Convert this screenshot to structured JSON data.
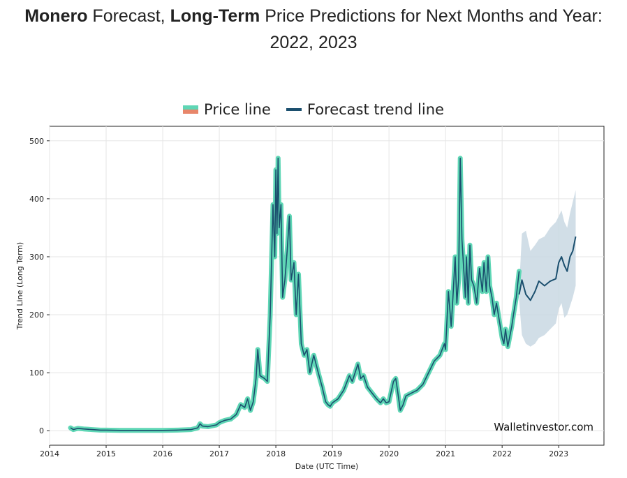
{
  "title": {
    "part1_bold": "Monero",
    "part2": " Forecast, ",
    "part3_bold": "Long-Term",
    "part4": " Price Predictions for Next Months and Year:",
    "line2": "2022, 2023"
  },
  "legend": {
    "price_label": "Price line",
    "forecast_label": "Forecast trend line"
  },
  "watermark": "Walletinvestor.com",
  "colors": {
    "price_line": "#5fd6b5",
    "price_line_alt": "#e8866a",
    "forecast_line": "#1b4f6e",
    "forecast_band": "#c9d8e3",
    "grid": "#e5e5e5"
  },
  "chart_data": {
    "type": "line",
    "xlabel": "Date (UTC Time)",
    "ylabel": "Trend Line (Long Term)",
    "xlim": [
      2014.0,
      2023.8
    ],
    "ylim": [
      -25,
      525
    ],
    "x_ticks": [
      "2014",
      "2015",
      "2016",
      "2017",
      "2018",
      "2019",
      "2020",
      "2021",
      "2022",
      "2023"
    ],
    "y_ticks": [
      "0",
      "100",
      "200",
      "300",
      "400",
      "500"
    ],
    "grid": true,
    "legend_position": "top-center",
    "series": [
      {
        "name": "Price line",
        "x": [
          2014.37,
          2014.42,
          2014.5,
          2014.6,
          2014.75,
          2014.9,
          2015.0,
          2015.25,
          2015.5,
          2015.75,
          2016.0,
          2016.25,
          2016.5,
          2016.62,
          2016.66,
          2016.7,
          2016.8,
          2016.95,
          2017.0,
          2017.1,
          2017.2,
          2017.3,
          2017.38,
          2017.45,
          2017.5,
          2017.55,
          2017.6,
          2017.65,
          2017.68,
          2017.72,
          2017.8,
          2017.85,
          2017.9,
          2017.95,
          2017.98,
          2018.0,
          2018.02,
          2018.04,
          2018.06,
          2018.09,
          2018.12,
          2018.16,
          2018.2,
          2018.24,
          2018.27,
          2018.32,
          2018.36,
          2018.4,
          2018.45,
          2018.5,
          2018.55,
          2018.6,
          2018.67,
          2018.75,
          2018.82,
          2018.88,
          2018.92,
          2018.96,
          2019.0,
          2019.1,
          2019.2,
          2019.3,
          2019.35,
          2019.45,
          2019.5,
          2019.55,
          2019.62,
          2019.7,
          2019.78,
          2019.85,
          2019.9,
          2019.95,
          2020.0,
          2020.08,
          2020.12,
          2020.15,
          2020.2,
          2020.25,
          2020.3,
          2020.4,
          2020.5,
          2020.6,
          2020.7,
          2020.8,
          2020.9,
          2020.98,
          2021.0,
          2021.05,
          2021.1,
          2021.13,
          2021.17,
          2021.2,
          2021.23,
          2021.26,
          2021.29,
          2021.32,
          2021.35,
          2021.37,
          2021.4,
          2021.43,
          2021.46,
          2021.5,
          2021.55,
          2021.6,
          2021.65,
          2021.68,
          2021.72,
          2021.75,
          2021.78,
          2021.82,
          2021.86,
          2021.9,
          2021.95,
          2022.0,
          2022.03,
          2022.06,
          2022.1,
          2022.13,
          2022.17,
          2022.2,
          2022.25,
          2022.3
        ],
        "y": [
          5,
          2,
          4,
          3,
          2,
          1,
          1,
          0.5,
          0.5,
          0.5,
          0.5,
          1,
          2,
          5,
          12,
          8,
          7,
          10,
          14,
          18,
          20,
          28,
          45,
          40,
          55,
          35,
          50,
          90,
          140,
          95,
          90,
          85,
          200,
          390,
          300,
          450,
          340,
          470,
          350,
          390,
          230,
          260,
          310,
          370,
          260,
          290,
          200,
          270,
          150,
          130,
          140,
          100,
          130,
          100,
          75,
          50,
          45,
          42,
          48,
          55,
          70,
          95,
          85,
          115,
          90,
          95,
          75,
          65,
          55,
          48,
          55,
          48,
          50,
          85,
          90,
          70,
          35,
          45,
          60,
          65,
          70,
          80,
          100,
          120,
          130,
          150,
          140,
          240,
          180,
          230,
          300,
          220,
          260,
          470,
          330,
          280,
          230,
          300,
          220,
          320,
          260,
          250,
          220,
          280,
          240,
          290,
          240,
          300,
          250,
          230,
          200,
          220,
          190,
          160,
          150,
          175,
          145,
          160,
          180,
          200,
          230,
          275
        ]
      },
      {
        "name": "Forecast trend line",
        "x": [
          2022.3,
          2022.35,
          2022.42,
          2022.5,
          2022.58,
          2022.65,
          2022.75,
          2022.85,
          2022.95,
          2023.0,
          2023.05,
          2023.1,
          2023.15,
          2023.2,
          2023.25,
          2023.3
        ],
        "y": [
          235,
          260,
          235,
          225,
          240,
          258,
          250,
          258,
          262,
          290,
          300,
          285,
          275,
          300,
          310,
          335
        ],
        "band_low": [
          225,
          165,
          150,
          145,
          150,
          160,
          165,
          175,
          185,
          210,
          220,
          195,
          200,
          215,
          230,
          250
        ],
        "band_high": [
          245,
          340,
          345,
          310,
          320,
          330,
          335,
          350,
          360,
          370,
          380,
          360,
          350,
          375,
          395,
          415
        ]
      }
    ]
  }
}
